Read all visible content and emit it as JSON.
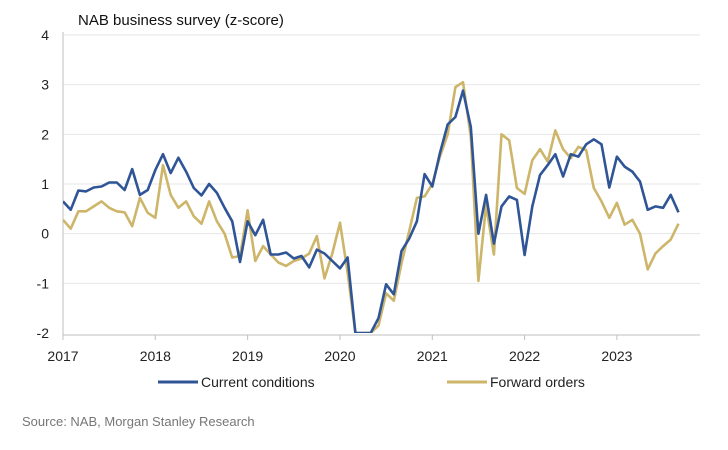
{
  "source_note": "Source: NAB, Morgan Stanley Research",
  "chart_data": {
    "type": "line",
    "title": "NAB business survey (z-score)",
    "xlabel": "",
    "ylabel": "",
    "ylim": [
      -2,
      4
    ],
    "yticks": [
      "4",
      "3",
      "2",
      "1",
      "0",
      "-1",
      "-2"
    ],
    "xlim": [
      2017.0,
      2023.9
    ],
    "xticks": [
      "2017",
      "2018",
      "2019",
      "2020",
      "2021",
      "2022",
      "2023"
    ],
    "grid": true,
    "legend_position": "bottom",
    "series": [
      {
        "name": "Current conditions",
        "color": "#2f5597",
        "x": [
          2017.0,
          2017.083,
          2017.167,
          2017.25,
          2017.333,
          2017.417,
          2017.5,
          2017.583,
          2017.667,
          2017.75,
          2017.833,
          2017.917,
          2018.0,
          2018.083,
          2018.167,
          2018.25,
          2018.333,
          2018.417,
          2018.5,
          2018.583,
          2018.667,
          2018.75,
          2018.833,
          2018.917,
          2019.0,
          2019.083,
          2019.167,
          2019.25,
          2019.333,
          2019.417,
          2019.5,
          2019.583,
          2019.667,
          2019.75,
          2019.833,
          2019.917,
          2020.0,
          2020.083,
          2020.167,
          2020.25,
          2020.333,
          2020.417,
          2020.5,
          2020.583,
          2020.667,
          2020.75,
          2020.833,
          2020.917,
          2021.0,
          2021.083,
          2021.167,
          2021.25,
          2021.333,
          2021.417,
          2021.5,
          2021.583,
          2021.667,
          2021.75,
          2021.833,
          2021.917,
          2022.0,
          2022.083,
          2022.167,
          2022.25,
          2022.333,
          2022.417,
          2022.5,
          2022.583,
          2022.667,
          2022.75,
          2022.833,
          2022.917,
          2023.0,
          2023.083,
          2023.167,
          2023.25,
          2023.333,
          2023.417,
          2023.5,
          2023.583,
          2023.667
        ],
        "values": [
          0.65,
          0.48,
          0.87,
          0.85,
          0.93,
          0.95,
          1.03,
          1.03,
          0.88,
          1.3,
          0.78,
          0.88,
          1.28,
          1.6,
          1.22,
          1.53,
          1.25,
          0.92,
          0.77,
          1.0,
          0.82,
          0.52,
          0.25,
          -0.57,
          0.25,
          -0.03,
          0.28,
          -0.42,
          -0.42,
          -0.38,
          -0.5,
          -0.45,
          -0.68,
          -0.32,
          -0.4,
          -0.55,
          -0.7,
          -0.48,
          -2.0,
          -2.0,
          -2.0,
          -1.7,
          -1.02,
          -1.22,
          -0.35,
          -0.1,
          0.25,
          1.2,
          0.95,
          1.62,
          2.2,
          2.35,
          2.88,
          2.15,
          0.0,
          0.78,
          -0.2,
          0.55,
          0.75,
          0.68,
          -0.43,
          0.55,
          1.18,
          1.38,
          1.6,
          1.15,
          1.6,
          1.55,
          1.8,
          1.9,
          1.8,
          0.93,
          1.55,
          1.35,
          1.25,
          1.05,
          0.48,
          0.55,
          0.52,
          0.78,
          0.43
        ]
      },
      {
        "name": "Forward orders",
        "color": "#cdb56a",
        "x": [
          2017.0,
          2017.083,
          2017.167,
          2017.25,
          2017.333,
          2017.417,
          2017.5,
          2017.583,
          2017.667,
          2017.75,
          2017.833,
          2017.917,
          2018.0,
          2018.083,
          2018.167,
          2018.25,
          2018.333,
          2018.417,
          2018.5,
          2018.583,
          2018.667,
          2018.75,
          2018.833,
          2018.917,
          2019.0,
          2019.083,
          2019.167,
          2019.25,
          2019.333,
          2019.417,
          2019.5,
          2019.583,
          2019.667,
          2019.75,
          2019.833,
          2019.917,
          2020.0,
          2020.083,
          2020.167,
          2020.25,
          2020.333,
          2020.417,
          2020.5,
          2020.583,
          2020.667,
          2020.75,
          2020.833,
          2020.917,
          2021.0,
          2021.083,
          2021.167,
          2021.25,
          2021.333,
          2021.417,
          2021.5,
          2021.583,
          2021.667,
          2021.75,
          2021.833,
          2021.917,
          2022.0,
          2022.083,
          2022.167,
          2022.25,
          2022.333,
          2022.417,
          2022.5,
          2022.583,
          2022.667,
          2022.75,
          2022.833,
          2022.917,
          2023.0,
          2023.083,
          2023.167,
          2023.25,
          2023.333,
          2023.417,
          2023.5,
          2023.583,
          2023.667
        ],
        "values": [
          0.28,
          0.1,
          0.45,
          0.45,
          0.55,
          0.65,
          0.52,
          0.45,
          0.43,
          0.15,
          0.72,
          0.42,
          0.32,
          1.38,
          0.78,
          0.52,
          0.65,
          0.35,
          0.2,
          0.65,
          0.25,
          0.0,
          -0.48,
          -0.45,
          0.47,
          -0.55,
          -0.25,
          -0.42,
          -0.58,
          -0.65,
          -0.55,
          -0.5,
          -0.4,
          -0.05,
          -0.9,
          -0.4,
          0.22,
          -0.78,
          -2.0,
          -2.0,
          -2.0,
          -1.85,
          -1.2,
          -1.35,
          -0.6,
          0.05,
          0.72,
          0.75,
          1.0,
          1.55,
          2.0,
          2.95,
          3.05,
          1.95,
          -0.95,
          0.58,
          -0.42,
          2.0,
          1.88,
          0.92,
          0.8,
          1.48,
          1.7,
          1.45,
          2.08,
          1.7,
          1.52,
          1.75,
          1.68,
          0.92,
          0.65,
          0.32,
          0.62,
          0.18,
          0.28,
          0.0,
          -0.72,
          -0.4,
          -0.25,
          -0.12,
          0.2
        ]
      }
    ]
  }
}
